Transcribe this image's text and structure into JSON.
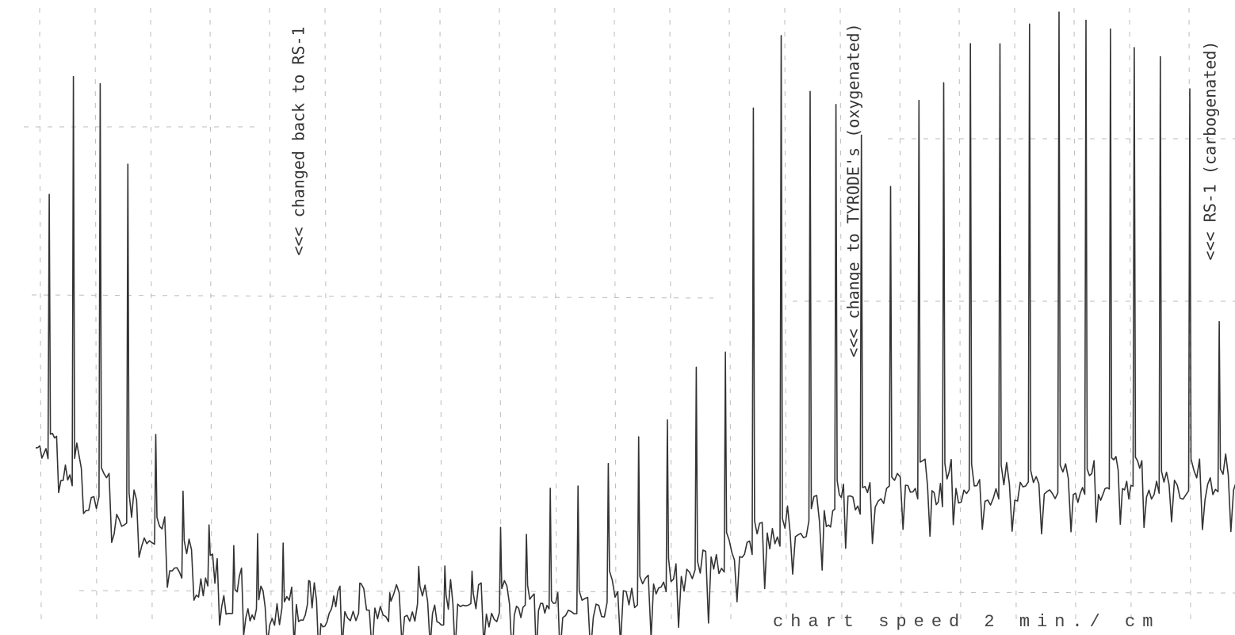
{
  "annotations": [
    "<<<  changed back to RS-1",
    "<<< change to TYRODE's (oxygenated)",
    "<<<  RS-1 (carbogenated)"
  ],
  "footer": "chart speed 2 min./ cm"
}
